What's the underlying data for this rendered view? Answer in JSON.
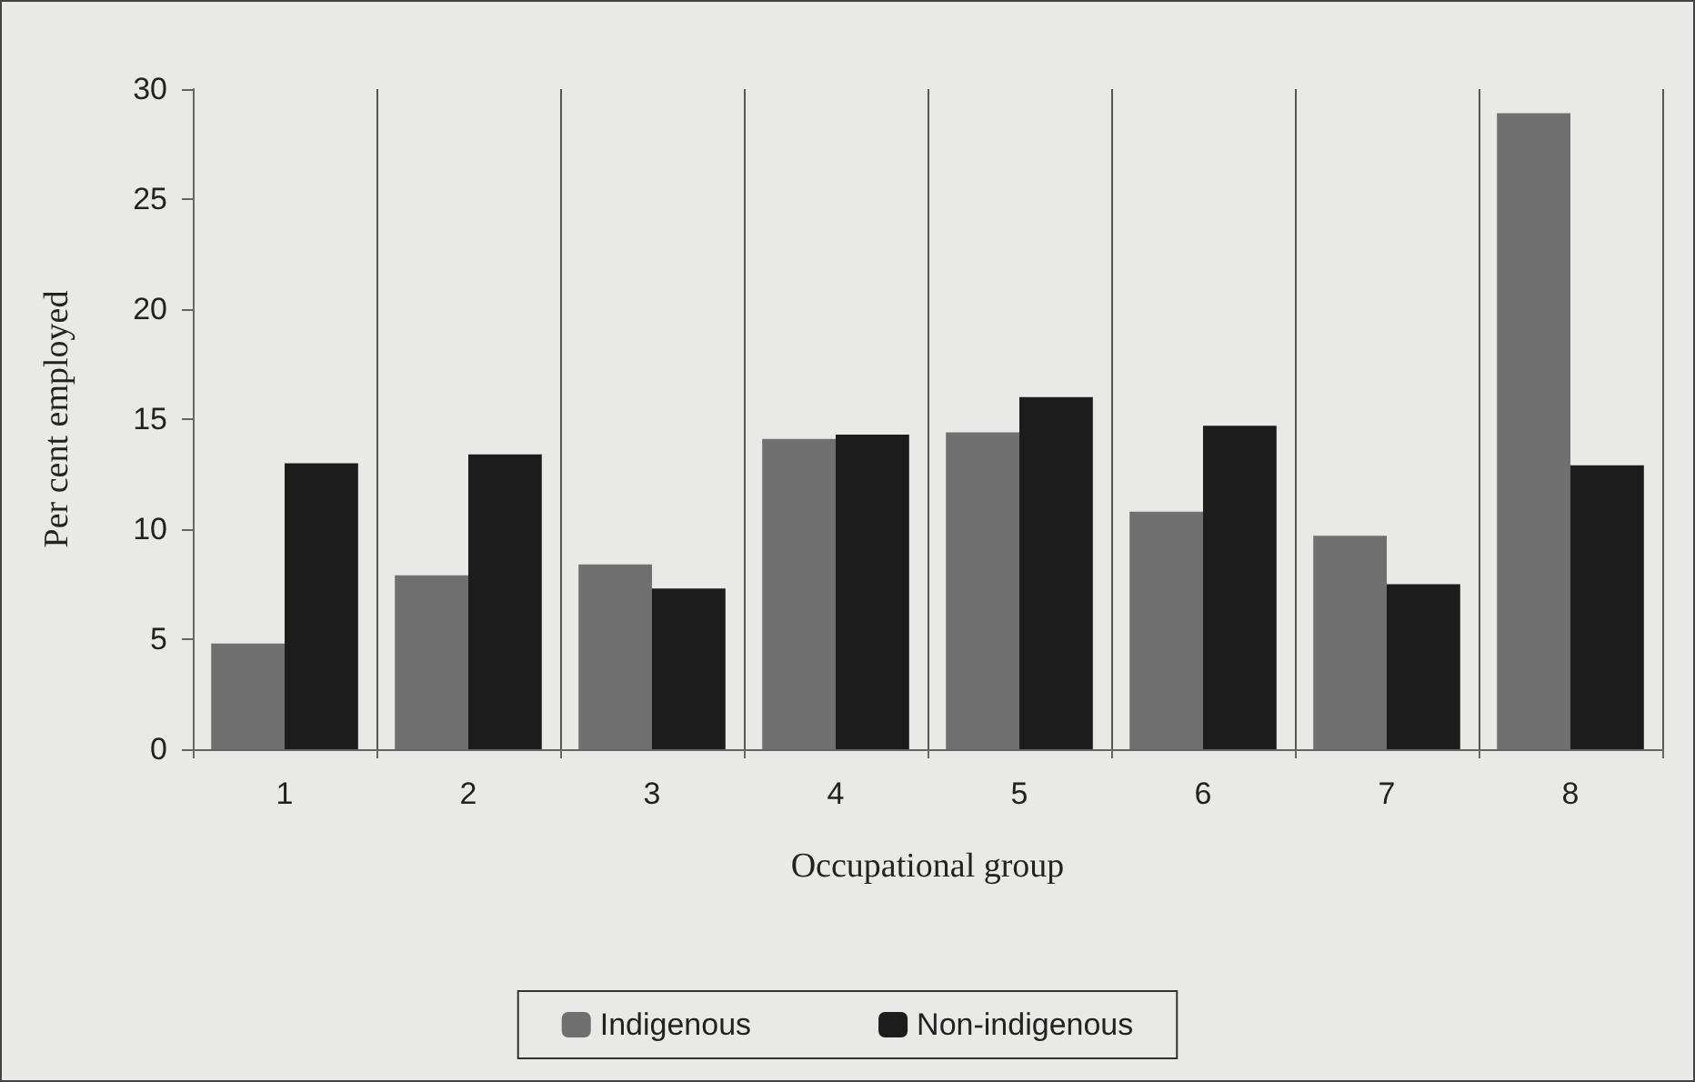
{
  "chart_data": {
    "type": "bar",
    "xlabel": "Occupational group",
    "ylabel": "Per cent employed",
    "categories": [
      "1",
      "2",
      "3",
      "4",
      "5",
      "6",
      "7",
      "8"
    ],
    "series": [
      {
        "name": "Indigenous",
        "color": "#707070",
        "values": [
          4.8,
          7.9,
          8.4,
          14.1,
          14.4,
          10.8,
          9.7,
          28.9
        ]
      },
      {
        "name": "Non-indigenous",
        "color": "#1c1c1c",
        "values": [
          13.0,
          13.4,
          7.3,
          14.3,
          16.0,
          14.7,
          7.5,
          12.9
        ]
      }
    ],
    "ylim": [
      0,
      30
    ],
    "yticks": [
      0,
      5,
      10,
      15,
      20,
      25,
      30
    ],
    "grid": "x",
    "legend": "bottom"
  }
}
